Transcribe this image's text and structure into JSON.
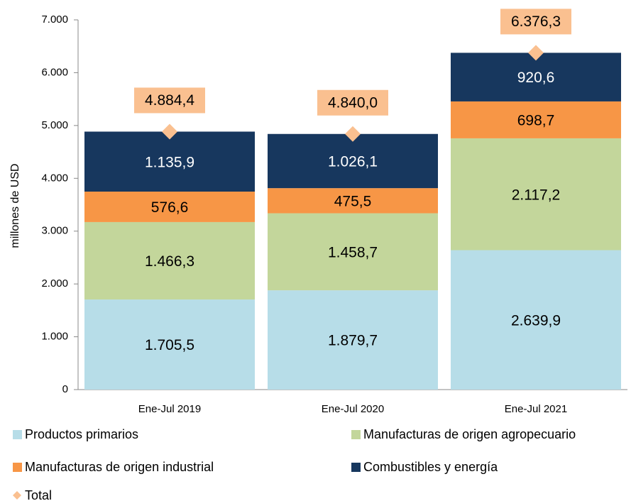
{
  "chart_data": {
    "type": "stacked-bar",
    "ylabel": "millones de USD",
    "categories": [
      "Ene-Jul 2019",
      "Ene-Jul 2020",
      "Ene-Jul 2021"
    ],
    "ylim": [
      0,
      7000
    ],
    "yticks": [
      0,
      {
        "value": 1000,
        "label": "1.000"
      },
      {
        "value": 2000,
        "label": "2.000"
      },
      {
        "value": 3000,
        "label": "3.000"
      },
      {
        "value": 4000,
        "label": "4.000"
      },
      {
        "value": 5000,
        "label": "5.000"
      },
      {
        "value": 6000,
        "label": "6.000"
      },
      {
        "value": 7000,
        "label": "7.000"
      }
    ],
    "series": [
      {
        "name": "Productos primarios",
        "color": "#b7dde8",
        "label_color": "#000",
        "values": [
          1705.5,
          1879.7,
          2639.9
        ],
        "value_labels": [
          "1.705,5",
          "1.879,7",
          "2.639,9"
        ]
      },
      {
        "name": "Manufacturas de origen agropecuario",
        "color": "#c3d69b",
        "label_color": "#000",
        "values": [
          1466.3,
          1458.7,
          2117.2
        ],
        "value_labels": [
          "1.466,3",
          "1.458,7",
          "2.117,2"
        ]
      },
      {
        "name": "Manufacturas de origen industrial",
        "color": "#f79646",
        "label_color": "#000",
        "values": [
          576.6,
          475.5,
          698.7
        ],
        "value_labels": [
          "576,6",
          "475,5",
          "698,7"
        ]
      },
      {
        "name": "Combustibles y energía",
        "color": "#17375e",
        "label_color": "#fff",
        "values": [
          1135.9,
          1026.1,
          920.6
        ],
        "value_labels": [
          "1.135,9",
          "1.026,1",
          "920,6"
        ]
      }
    ],
    "total": {
      "name": "Total",
      "color": "#fac090",
      "values": [
        4884.4,
        4840.0,
        6376.3
      ],
      "value_labels": [
        "4.884,4",
        "4.840,0",
        "6.376,3"
      ]
    }
  }
}
